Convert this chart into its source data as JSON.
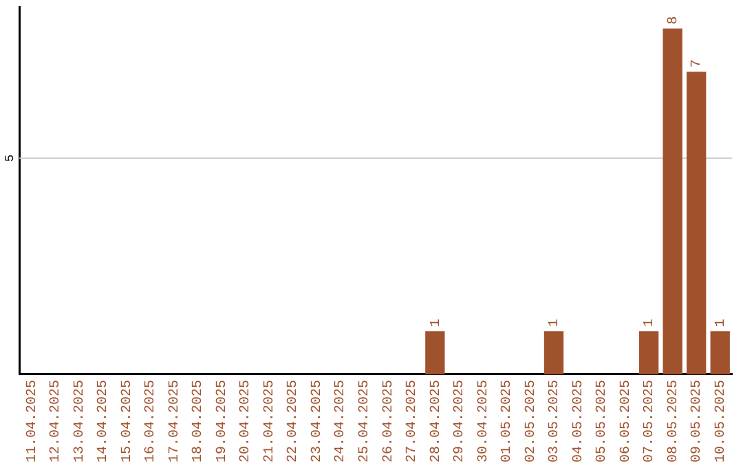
{
  "chart_data": {
    "type": "bar",
    "categories": [
      "11.04.2025",
      "12.04.2025",
      "13.04.2025",
      "14.04.2025",
      "15.04.2025",
      "16.04.2025",
      "17.04.2025",
      "18.04.2025",
      "19.04.2025",
      "20.04.2025",
      "21.04.2025",
      "22.04.2025",
      "23.04.2025",
      "24.04.2025",
      "25.04.2025",
      "26.04.2025",
      "27.04.2025",
      "28.04.2025",
      "29.04.2025",
      "30.04.2025",
      "01.05.2025",
      "02.05.2025",
      "03.05.2025",
      "04.05.2025",
      "05.05.2025",
      "06.05.2025",
      "07.05.2025",
      "08.05.2025",
      "09.05.2025",
      "10.05.2025"
    ],
    "values": [
      null,
      null,
      null,
      null,
      null,
      null,
      null,
      null,
      null,
      null,
      null,
      null,
      null,
      null,
      null,
      null,
      null,
      1,
      null,
      null,
      null,
      null,
      1,
      null,
      null,
      null,
      1,
      8,
      7,
      1
    ],
    "value_labels": [
      null,
      null,
      null,
      null,
      null,
      null,
      null,
      null,
      null,
      null,
      null,
      null,
      null,
      null,
      null,
      null,
      null,
      "1",
      null,
      null,
      null,
      null,
      "1",
      null,
      null,
      null,
      "1",
      "8",
      "7",
      "1"
    ],
    "color": "#a0522d",
    "ylim": [
      0,
      8.5
    ],
    "ref_lines": [
      {
        "axis": "y",
        "value": 5,
        "label": "5",
        "color": "#c8c8c8"
      }
    ]
  }
}
